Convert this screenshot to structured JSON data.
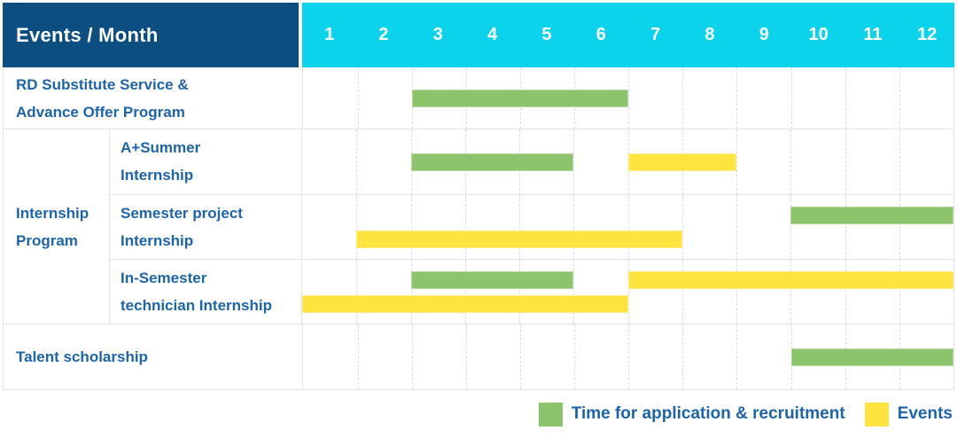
{
  "header": {
    "title": "Events / Month",
    "months": [
      "1",
      "2",
      "3",
      "4",
      "5",
      "6",
      "7",
      "8",
      "9",
      "10",
      "11",
      "12"
    ]
  },
  "colors": {
    "header_bg": "#0C4D82",
    "months_bg": "#0BD3EC",
    "header_text": "#FFFFFF",
    "label_text": "#1D64A8",
    "recruitment_bar": "#8CC46B",
    "event_bar": "#FFE440",
    "grid_line": "#E3E3E3"
  },
  "legend": {
    "items": [
      {
        "label": "Time for application & recruitment",
        "type": "recruitment"
      },
      {
        "label": "Events",
        "type": "event"
      }
    ]
  },
  "chart_data": {
    "type": "bar",
    "variant": "gantt-timeline",
    "title": "Events / Month",
    "xlabel": "Month",
    "x_ticks": [
      1,
      2,
      3,
      4,
      5,
      6,
      7,
      8,
      9,
      10,
      11,
      12
    ],
    "x_range": [
      1,
      12
    ],
    "grid": "vertical-dashed",
    "legend_position": "bottom-right",
    "legend": [
      {
        "label": "Time for application & recruitment",
        "type": "recruitment",
        "color": "#8CC46B"
      },
      {
        "label": "Events",
        "type": "event",
        "color": "#FFE440"
      }
    ],
    "row_groups": [
      {
        "label_lines": [
          "Internship",
          "Program"
        ],
        "row_indexes": [
          1,
          2,
          3
        ]
      }
    ],
    "rows": [
      {
        "label_lines": [
          "RD Substitute Service &",
          "Advance Offer Program"
        ],
        "lanes": [
          [
            {
              "type": "recruitment",
              "start_month": 3,
              "end_month": 6
            }
          ]
        ]
      },
      {
        "label_lines": [
          "A+Summer",
          "Internship"
        ],
        "lanes": [
          [
            {
              "type": "recruitment",
              "start_month": 3,
              "end_month": 5
            },
            {
              "type": "event",
              "start_month": 7,
              "end_month": 8
            }
          ]
        ]
      },
      {
        "label_lines": [
          "Semester project",
          "Internship"
        ],
        "lanes": [
          [
            {
              "type": "recruitment",
              "start_month": 10,
              "end_month": 12
            }
          ],
          [
            {
              "type": "event",
              "start_month": 2,
              "end_month": 7
            }
          ]
        ]
      },
      {
        "label_lines": [
          "In-Semester",
          "technician Internship"
        ],
        "lanes": [
          [
            {
              "type": "recruitment",
              "start_month": 3,
              "end_month": 5
            },
            {
              "type": "event",
              "start_month": 7,
              "end_month": 12
            }
          ],
          [
            {
              "type": "event",
              "start_month": 1,
              "end_month": 6
            }
          ]
        ]
      },
      {
        "label_lines": [
          "Talent scholarship"
        ],
        "lanes": [
          [
            {
              "type": "recruitment",
              "start_month": 10,
              "end_month": 12
            }
          ]
        ]
      }
    ]
  }
}
